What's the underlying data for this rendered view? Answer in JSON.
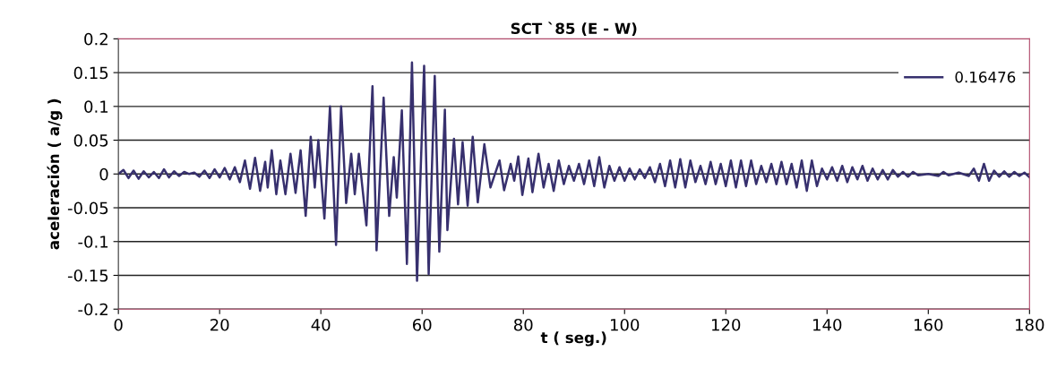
{
  "chart_data": {
    "type": "line",
    "title": "SCT `85 (E - W)",
    "xlabel": "t ( seg.)",
    "ylabel": "aceleración ( a/g )",
    "series": [
      {
        "name": "0.16476",
        "color": "#37306e",
        "x": [
          0,
          1,
          2,
          3,
          4,
          5,
          6,
          7,
          8,
          9,
          10,
          11,
          12,
          13,
          14,
          15,
          16,
          17,
          18,
          19,
          20,
          21,
          22,
          23,
          24,
          25,
          26,
          27,
          28,
          29,
          29.5,
          30.3,
          31.2,
          32,
          33,
          34,
          35,
          36,
          37,
          38,
          38.8,
          39.5,
          40.7,
          41.8,
          43,
          44,
          45,
          46,
          46.7,
          47.5,
          49,
          50.2,
          51,
          52.4,
          53.5,
          54.4,
          55,
          56,
          57,
          58,
          59,
          60.4,
          61.3,
          62.5,
          63.4,
          64.5,
          65,
          66.3,
          67.1,
          68,
          69,
          70,
          71,
          72.3,
          73.5,
          75.3,
          76.2,
          77.5,
          78.2,
          79,
          79.8,
          81,
          81.8,
          83,
          84,
          85,
          86,
          87,
          88,
          89,
          90,
          91,
          92,
          93,
          94,
          95,
          96,
          97,
          98,
          99,
          100,
          101,
          102,
          103,
          104,
          105,
          106,
          107,
          108,
          109,
          110,
          111,
          112,
          113,
          114,
          115,
          116,
          117,
          118,
          119,
          120,
          121,
          122,
          123,
          124,
          125,
          126,
          127,
          128,
          129,
          130,
          131,
          132,
          133,
          134,
          135,
          136,
          137,
          138,
          139,
          140,
          141,
          142,
          143,
          144,
          145,
          146,
          147,
          148,
          149,
          150,
          151,
          152,
          153,
          154,
          155,
          156,
          157,
          158,
          160,
          162,
          163,
          164,
          166,
          168,
          169,
          170,
          171,
          172,
          173,
          174,
          175,
          176,
          177,
          178,
          179,
          180
        ],
        "values": [
          0,
          0.006,
          -0.006,
          0.005,
          -0.007,
          0.004,
          -0.005,
          0.003,
          -0.006,
          0.007,
          -0.005,
          0.004,
          -0.003,
          0.003,
          0,
          0.002,
          -0.004,
          0.005,
          -0.006,
          0.007,
          -0.005,
          0.009,
          -0.008,
          0.01,
          -0.012,
          0.02,
          -0.022,
          0.024,
          -0.025,
          0.018,
          -0.02,
          0.035,
          -0.03,
          0.02,
          -0.03,
          0.03,
          -0.028,
          0.035,
          -0.062,
          0.055,
          -0.02,
          0.05,
          -0.066,
          0.1,
          -0.105,
          0.1,
          -0.043,
          0.03,
          -0.03,
          0.03,
          -0.076,
          0.13,
          -0.113,
          0.113,
          -0.062,
          0.025,
          -0.035,
          0.094,
          -0.133,
          0.165,
          -0.158,
          0.16,
          -0.148,
          0.145,
          -0.115,
          0.095,
          -0.083,
          0.052,
          -0.045,
          0.047,
          -0.047,
          0.055,
          -0.042,
          0.044,
          -0.02,
          0.02,
          -0.024,
          0.015,
          -0.01,
          0.026,
          -0.031,
          0.023,
          -0.027,
          0.03,
          -0.02,
          0.015,
          -0.025,
          0.02,
          -0.015,
          0.012,
          -0.01,
          0.015,
          -0.015,
          0.02,
          -0.018,
          0.025,
          -0.02,
          0.012,
          -0.01,
          0.01,
          -0.01,
          0.008,
          -0.008,
          0.007,
          -0.006,
          0.01,
          -0.012,
          0.015,
          -0.018,
          0.02,
          -0.02,
          0.022,
          -0.02,
          0.02,
          -0.012,
          0.012,
          -0.015,
          0.018,
          -0.015,
          0.015,
          -0.018,
          0.02,
          -0.02,
          0.02,
          -0.018,
          0.02,
          -0.015,
          0.012,
          -0.012,
          0.015,
          -0.015,
          0.018,
          -0.015,
          0.015,
          -0.02,
          0.02,
          -0.025,
          0.02,
          -0.018,
          0.008,
          -0.008,
          0.01,
          -0.01,
          0.012,
          -0.012,
          0.01,
          -0.008,
          0.012,
          -0.01,
          0.008,
          -0.008,
          0.006,
          -0.008,
          0.006,
          -0.004,
          0.003,
          -0.004,
          0.003,
          -0.002,
          0,
          -0.003,
          0.003,
          -0.002,
          0.002,
          -0.003,
          0.008,
          -0.01,
          0.015,
          -0.01,
          0.005,
          -0.004,
          0.004,
          -0.004,
          0.003,
          -0.003,
          0.002,
          -0.005
        ]
      }
    ],
    "xlim": [
      0,
      180
    ],
    "xticks": [
      0,
      20,
      40,
      60,
      80,
      100,
      120,
      140,
      160,
      180
    ],
    "ylim": [
      -0.2,
      0.2
    ],
    "yticks": [
      -0.2,
      -0.15,
      -0.1,
      -0.05,
      0,
      0.05,
      0.1,
      0.15,
      0.2
    ],
    "grid": "y",
    "legend": "top right",
    "marker": "none",
    "line_style": "solid"
  }
}
